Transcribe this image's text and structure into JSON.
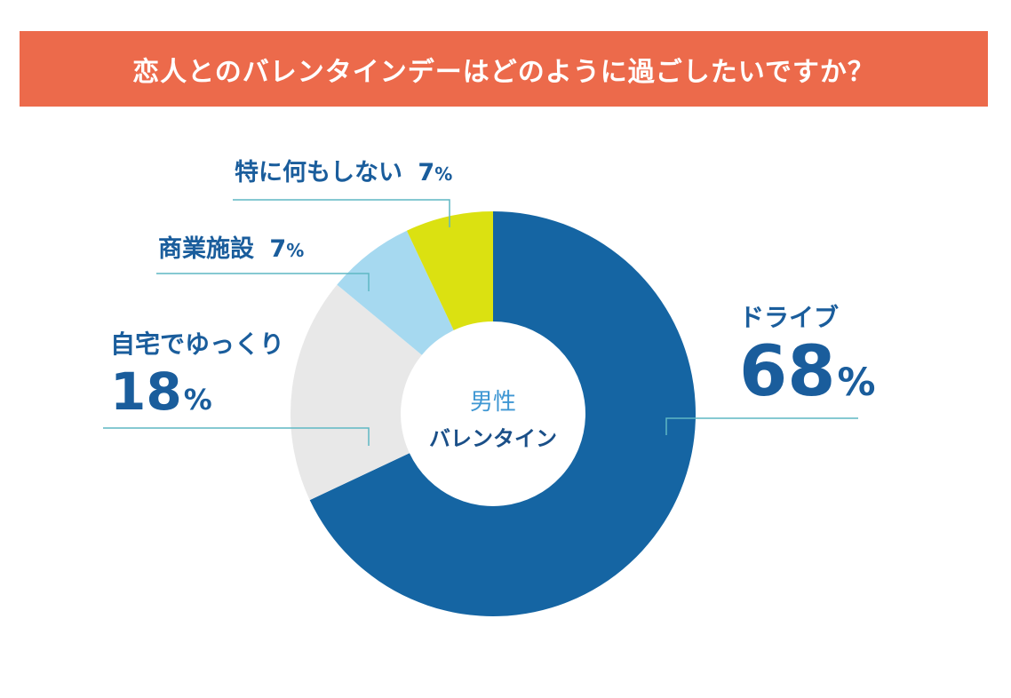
{
  "header": {
    "title": "恋人とのバレンタインデーはどのように過ごしたいですか？"
  },
  "chart_data": {
    "type": "pie",
    "style": "donut",
    "center_label": {
      "line1": "男性",
      "line2": "バレンタイン"
    },
    "unit": "%",
    "slices": [
      {
        "label": "ドライブ",
        "value": 68,
        "color": "#1565a3"
      },
      {
        "label": "自宅でゆっくり",
        "value": 18,
        "color": "#e8e8e8"
      },
      {
        "label": "商業施設",
        "value": 7,
        "color": "#a6d9f0"
      },
      {
        "label": "特に何もしない",
        "value": 7,
        "color": "#dbe111"
      }
    ],
    "leader_line_color": "#5fb7c4"
  }
}
